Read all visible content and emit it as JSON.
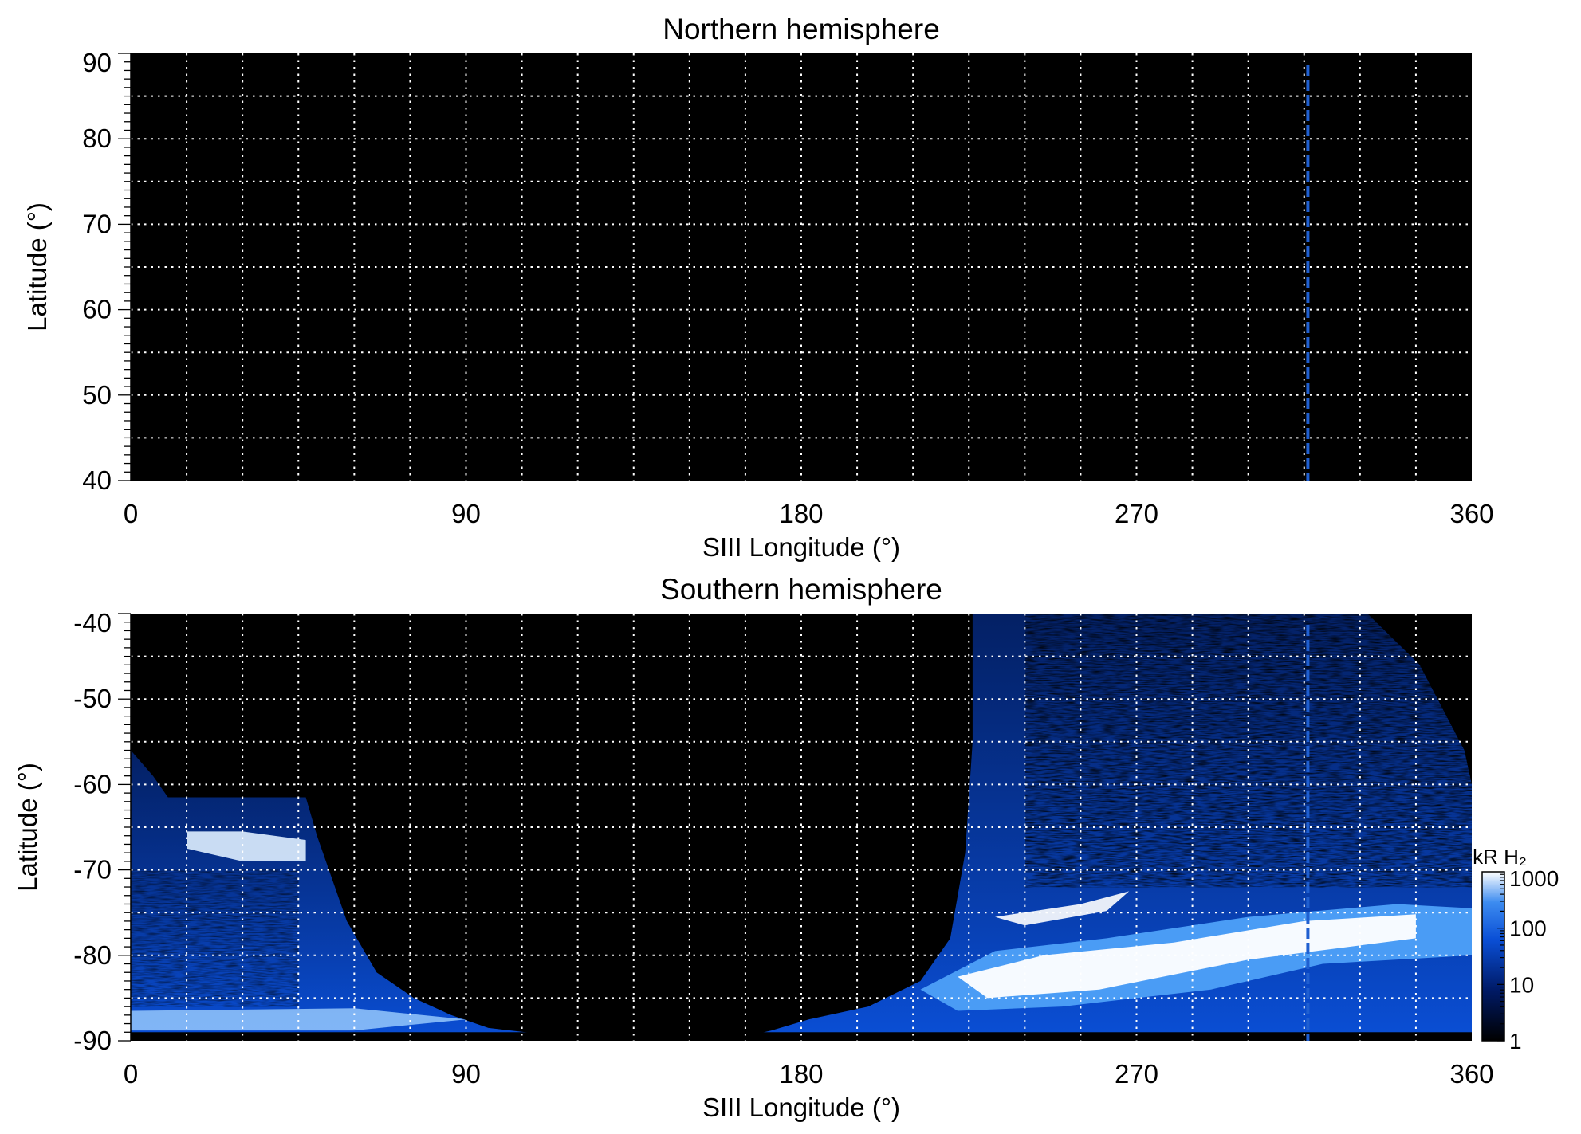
{
  "chart_data": [
    {
      "type": "heatmap",
      "title": "Northern hemisphere",
      "xlabel": "SIII Longitude (°)",
      "ylabel": "Latitude (°)",
      "xlim": [
        0,
        360
      ],
      "ylim": [
        40,
        90
      ],
      "xticks": [
        0,
        90,
        180,
        270,
        360
      ],
      "yticks": [
        40,
        50,
        60,
        70,
        80,
        90
      ],
      "grid": true,
      "grid_x_step": 15,
      "grid_y_step": 5,
      "marker_longitude": 316,
      "marker_color": "#1f5fd0",
      "emission": "none"
    },
    {
      "type": "heatmap",
      "title": "Southern hemisphere",
      "xlabel": "SIII Longitude (°)",
      "ylabel": "Latitude (°)",
      "xlim": [
        0,
        360
      ],
      "ylim": [
        -90,
        -40
      ],
      "xticks": [
        0,
        90,
        180,
        270,
        360
      ],
      "yticks": [
        -40,
        -50,
        -60,
        -70,
        -80,
        -90
      ],
      "grid": true,
      "grid_x_step": 15,
      "grid_y_step": 5,
      "marker_longitude": 316,
      "marker_color": "#1f5fd0",
      "emission": "southern-aurora",
      "colorbar": {
        "label": "kR H₂",
        "scale": "log",
        "range": [
          1,
          1000
        ],
        "ticks": [
          1,
          10,
          100,
          1000
        ],
        "colors": [
          "#000000",
          "#001a66",
          "#0a4fd6",
          "#3d8cf0",
          "#ffffff"
        ]
      }
    }
  ]
}
